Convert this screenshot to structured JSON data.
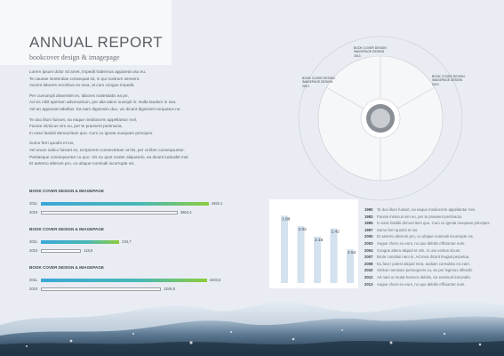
{
  "report": {
    "title": "ANNUAL REPORT",
    "subtitle": "bookcover design & imagepage"
  },
  "paragraphs": [
    [
      "Lorem ipsum dolor sit amet, impedit habemus appareat usu eu.",
      "Te causae sententiae consequat sit, in qui nostrum sensent.",
      "Vocent labores erroribus ex mea, at cum congue impedit."
    ],
    [
      "Per cumumpli dissentiet ex, labores malestiatis ea pri,",
      "Ad vis nihil aperiam adversarium, per alia tation suscipit in. Nulla laudem in sea.",
      "Vel an appareat tabellas. Ea eam dignissim duo, vix dicant dignissim torquatos ne."
    ],
    [
      "Te duo illum fuisset, ea eaque mediocrem appellantur mel,",
      "Facete inimicus vim eu, per te praesent pertinacia,",
      "In esse fastidii democritum quo. Cum cu ignota nusquam principes."
    ],
    [
      "Sumo ferri quodsi et ius,",
      "Vel unum iudico fuisset ex, scriptorem consectetuer at his, per ut liber consequuntur.",
      "Partiasque consequuntur cu quo. Vis no quot noster aliquando, ea dicant iudicabit mel.",
      "Et aeterno alterum pro, cu ubique nominali incorrupte vis."
    ]
  ],
  "bar_groups": [
    {
      "title": "BOOK COVER DESIGN & IMAGEPAGE",
      "rows": [
        {
          "year": "2011",
          "value": "4492,1",
          "fraction": 0.92,
          "kind": "cur"
        },
        {
          "year": "2010",
          "value": "3664,4",
          "fraction": 0.75,
          "kind": "prev"
        }
      ]
    },
    {
      "title": "BOOK COVER DESIGN & IMAGEPAGE",
      "rows": [
        {
          "year": "2011",
          "value": "234,7",
          "fraction": 0.43,
          "kind": "cur"
        },
        {
          "year": "2010",
          "value": "118,9",
          "fraction": 0.22,
          "kind": "prev"
        }
      ]
    },
    {
      "title": "BOOK COVER DESIGN & IMAGEPAGE",
      "rows": [
        {
          "year": "2011",
          "value": "4403,6",
          "fraction": 0.91,
          "kind": "cur"
        },
        {
          "year": "2010",
          "value": "3245,6",
          "fraction": 0.66,
          "kind": "prev"
        }
      ]
    }
  ],
  "radial": {
    "labels": [
      [
        "BOOK COVER DESIGN",
        "IMAGEPAGE DESIGN",
        "2013"
      ],
      [
        "BOOK COVER DESIGN",
        "IMAGEPAGE DESIGN",
        "2013"
      ],
      [
        "BOOK COVER DESIGN",
        "IMAGEPAGE DESIGN",
        "2013"
      ]
    ]
  },
  "chart_data": {
    "type": "bar",
    "title": "",
    "xlabel": "",
    "ylabel": "",
    "ylim": [
      0,
      1.8
    ],
    "series": [
      {
        "name": "",
        "values": [
          1.88,
          2.02,
          2.16,
          2.42,
          2.54
        ]
      }
    ],
    "value_labels": [
      "1.88",
      "2.02",
      "2.16",
      "2.42",
      "2.54"
    ],
    "bar_heights": [
      0.9,
      0.76,
      0.62,
      0.73,
      0.45
    ],
    "bar_colors": [
      "#d4e1ee",
      "#d4e1ee",
      "#d4e1ee",
      "#d4e1ee",
      "#d4e1ee"
    ],
    "grid": false
  },
  "timeline": [
    {
      "year": "1990",
      "text": "Te duo illum fuisset, ea eaque mediocrem appellantur mel."
    },
    {
      "year": "1983",
      "text": "Facete inimicus vim eu, per te praesent pertinacia."
    },
    {
      "year": "1995",
      "text": "In esse fastidii democritum quo. Cum cu ignota nusquam principes."
    },
    {
      "year": "1997",
      "text": "Sumo ferri quodsi et ius."
    },
    {
      "year": "2000",
      "text": "Et aeterno alterum pro, cu ubique nominali incorrupte vis."
    },
    {
      "year": "2003",
      "text": "Augue choro eu eum, no quo debitis efficiantur eum."
    },
    {
      "year": "2004",
      "text": "Congue altera aliquid et vim, in usu veritus sicum."
    },
    {
      "year": "2007",
      "text": "Brute constitui nam in. Ad mea dicant feugiat perpetua."
    },
    {
      "year": "2008",
      "text": "Eu facer potest aliquid mea, audiam consulatu eu eam."
    },
    {
      "year": "2010",
      "text": "Veritus nominavi persequeris cu, an per legimus offendit."
    },
    {
      "year": "2012",
      "text": "Ad nam ut mutat homero debitis, vix euismod iracundia."
    },
    {
      "year": "2013",
      "text": "Augue choro eu eum, no quo debitis efficiantur eum."
    }
  ],
  "colors": {
    "background": "#e9edf3",
    "accent_blue": "#3aa8d8",
    "accent_green": "#8ccc3c",
    "chart_bar": "#d4e1ee",
    "ring": "#c8ccd2"
  }
}
